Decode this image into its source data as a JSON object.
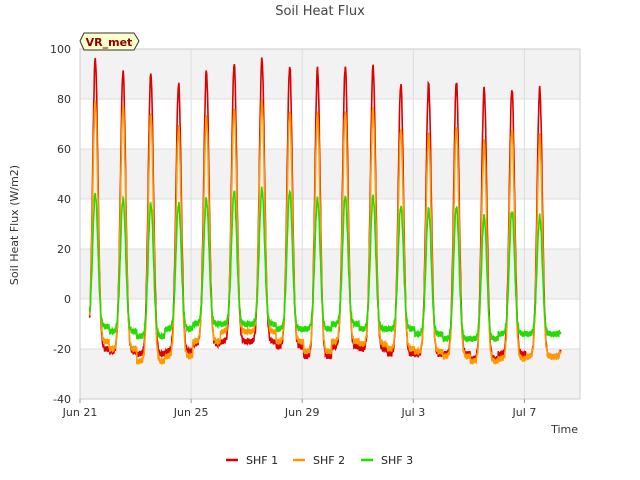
{
  "chart_data": {
    "type": "line",
    "title": "Soil Heat Flux",
    "xlabel": "Time",
    "ylabel": "Soil Heat Flux (W/m2)",
    "ylim": [
      -40,
      100
    ],
    "yticks": [
      -40,
      -20,
      0,
      20,
      40,
      60,
      80,
      100
    ],
    "xlim": [
      0,
      18
    ],
    "xticks": [
      {
        "day": 0,
        "label": "Jun 21"
      },
      {
        "day": 4,
        "label": "Jun 25"
      },
      {
        "day": 8,
        "label": "Jun 29"
      },
      {
        "day": 12,
        "label": "Jul 3"
      },
      {
        "day": 16,
        "label": "Jul 7"
      }
    ],
    "station_label": "VR_met",
    "grid": true,
    "legend": "bottom-center",
    "x_start_day": 0.35,
    "x_end_day": 17.3,
    "peak_day_offset": 0.55,
    "series": [
      {
        "name": "SHF 1",
        "color": "#dd0000",
        "daily_max": [
          96,
          91,
          90,
          86,
          91,
          94,
          96,
          93,
          92,
          93,
          93,
          86,
          86,
          87,
          84,
          84,
          84
        ],
        "daily_min": [
          -20,
          -21,
          -22,
          -21,
          -18,
          -17,
          -17,
          -19,
          -23,
          -19,
          -20,
          -22,
          -22,
          -22,
          -24,
          -22,
          -23
        ]
      },
      {
        "name": "SHF 2",
        "color": "#ff9900",
        "daily_max": [
          79,
          77,
          74,
          69,
          73,
          76,
          79,
          75,
          74,
          75,
          76,
          68,
          66,
          69,
          63,
          68,
          65
        ],
        "daily_min": [
          -17,
          -20,
          -25,
          -23,
          -17,
          -13,
          -13,
          -17,
          -21,
          -17,
          -18,
          -20,
          -21,
          -23,
          -25,
          -24,
          -23
        ]
      },
      {
        "name": "SHF 3",
        "color": "#22dd00",
        "daily_max": [
          42,
          40,
          38,
          38,
          40,
          43,
          44,
          43,
          40,
          41,
          41,
          37,
          36,
          37,
          33,
          35,
          33
        ],
        "daily_min": [
          -11,
          -13,
          -15,
          -12,
          -10,
          -10,
          -10,
          -12,
          -12,
          -10,
          -12,
          -12,
          -14,
          -16,
          -16,
          -14,
          -14
        ]
      }
    ]
  }
}
